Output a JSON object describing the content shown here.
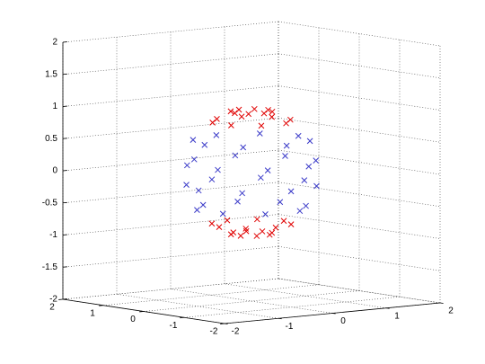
{
  "chart_data": {
    "type": "scatter3d",
    "xlim": [
      -2,
      2
    ],
    "ylim": [
      -2,
      2
    ],
    "zlim": [
      -2,
      2
    ],
    "xticks": [
      -2,
      -1,
      0,
      1,
      2
    ],
    "yticks": [
      -2,
      -1,
      0,
      1,
      2
    ],
    "zticks": [
      -2,
      -1.5,
      -1,
      -0.5,
      0,
      0.5,
      1,
      1.5,
      2
    ],
    "grid": true,
    "series": [
      {
        "color": "#e00000",
        "x": [
          0.31,
          0.22,
          0,
          -0.22,
          -0.31,
          -0.22,
          0,
          0.22,
          0.55,
          0.23,
          -0.23,
          -0.55,
          -0.55,
          -0.23,
          0.23,
          0.55,
          0.29,
          0.12,
          -0.12,
          -0.29,
          -0.29,
          -0.12,
          0.12,
          0.29,
          0.6,
          0.42,
          0,
          -0.42,
          -0.6,
          -0.42,
          0,
          0.42
        ],
        "y": [
          0,
          0.22,
          0.31,
          0.22,
          0,
          -0.22,
          -0.31,
          -0.22,
          0.23,
          0.55,
          0.55,
          0.23,
          -0.23,
          -0.55,
          -0.55,
          -0.23,
          0.12,
          0.29,
          0.29,
          0.12,
          -0.12,
          -0.29,
          -0.29,
          -0.12,
          0,
          0.42,
          0.6,
          0.42,
          0,
          -0.42,
          -0.6,
          -0.42
        ],
        "z": [
          0.95,
          0.95,
          0.95,
          0.95,
          0.95,
          0.95,
          0.95,
          0.95,
          0.8,
          0.8,
          0.8,
          0.8,
          0.8,
          0.8,
          0.8,
          0.8,
          -0.95,
          -0.95,
          -0.95,
          -0.95,
          -0.95,
          -0.95,
          -0.95,
          -0.95,
          -0.8,
          -0.8,
          -0.8,
          -0.8,
          -0.8,
          -0.8,
          -0.8,
          -0.8
        ]
      },
      {
        "color": "#3a3ac8",
        "x": [
          0.87,
          0.62,
          0,
          -0.62,
          -0.87,
          -0.62,
          0,
          0.62,
          0.91,
          0.38,
          -0.38,
          -0.91,
          -0.91,
          -0.38,
          0.38,
          0.91,
          0.98,
          0.69,
          0,
          -0.69,
          -0.98,
          -0.69,
          0,
          0.69,
          0.77,
          0.32,
          -0.32,
          -0.77,
          -0.77,
          -0.32,
          0.32,
          0.77
        ],
        "y": [
          0,
          0.62,
          0.87,
          0.62,
          0,
          -0.62,
          -0.87,
          -0.62,
          0.38,
          0.91,
          0.91,
          0.38,
          -0.38,
          -0.91,
          -0.91,
          -0.38,
          0,
          0.69,
          0.98,
          0.69,
          0,
          -0.69,
          -0.98,
          -0.69,
          0.32,
          0.77,
          0.77,
          0.32,
          -0.32,
          -0.77,
          -0.77,
          -0.32
        ],
        "z": [
          0.5,
          0.5,
          0.5,
          0.5,
          0.5,
          0.5,
          0.5,
          0.5,
          0.15,
          0.15,
          0.15,
          0.15,
          0.15,
          0.15,
          0.15,
          0.15,
          -0.2,
          -0.2,
          -0.2,
          -0.2,
          -0.2,
          -0.2,
          -0.2,
          -0.2,
          -0.55,
          -0.55,
          -0.55,
          -0.55,
          -0.55,
          -0.55,
          -0.55,
          -0.55
        ]
      }
    ]
  }
}
